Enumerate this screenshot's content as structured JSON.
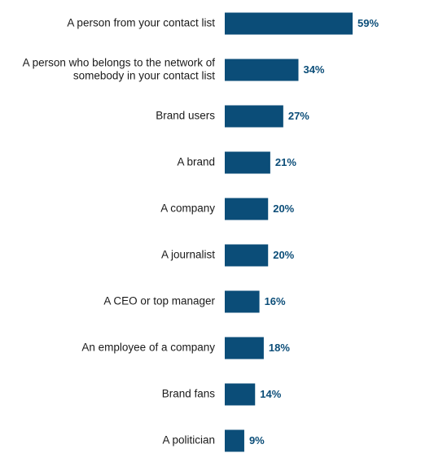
{
  "chart_data": {
    "type": "bar",
    "orientation": "horizontal",
    "categories": [
      [
        "A person from your contact list"
      ],
      [
        "A person who belongs to the network of",
        "somebody in your contact list"
      ],
      [
        "Brand users"
      ],
      [
        "A brand"
      ],
      [
        "A company"
      ],
      [
        "A journalist"
      ],
      [
        "A CEO or top manager"
      ],
      [
        "An employee of a company"
      ],
      [
        "Brand fans"
      ],
      [
        "A politician"
      ]
    ],
    "values": [
      59,
      34,
      27,
      21,
      20,
      20,
      16,
      18,
      14,
      9
    ],
    "value_labels": [
      "59%",
      "34%",
      "27%",
      "21%",
      "20%",
      "20%",
      "16%",
      "18%",
      "14%",
      "9%"
    ],
    "unit": "%",
    "xlim": [
      0,
      59
    ],
    "grid": false,
    "legend": "none",
    "colors": {
      "bar": "#0b4d78",
      "value_text": "#0b4d78",
      "label_text": "#1a1a1a"
    }
  }
}
